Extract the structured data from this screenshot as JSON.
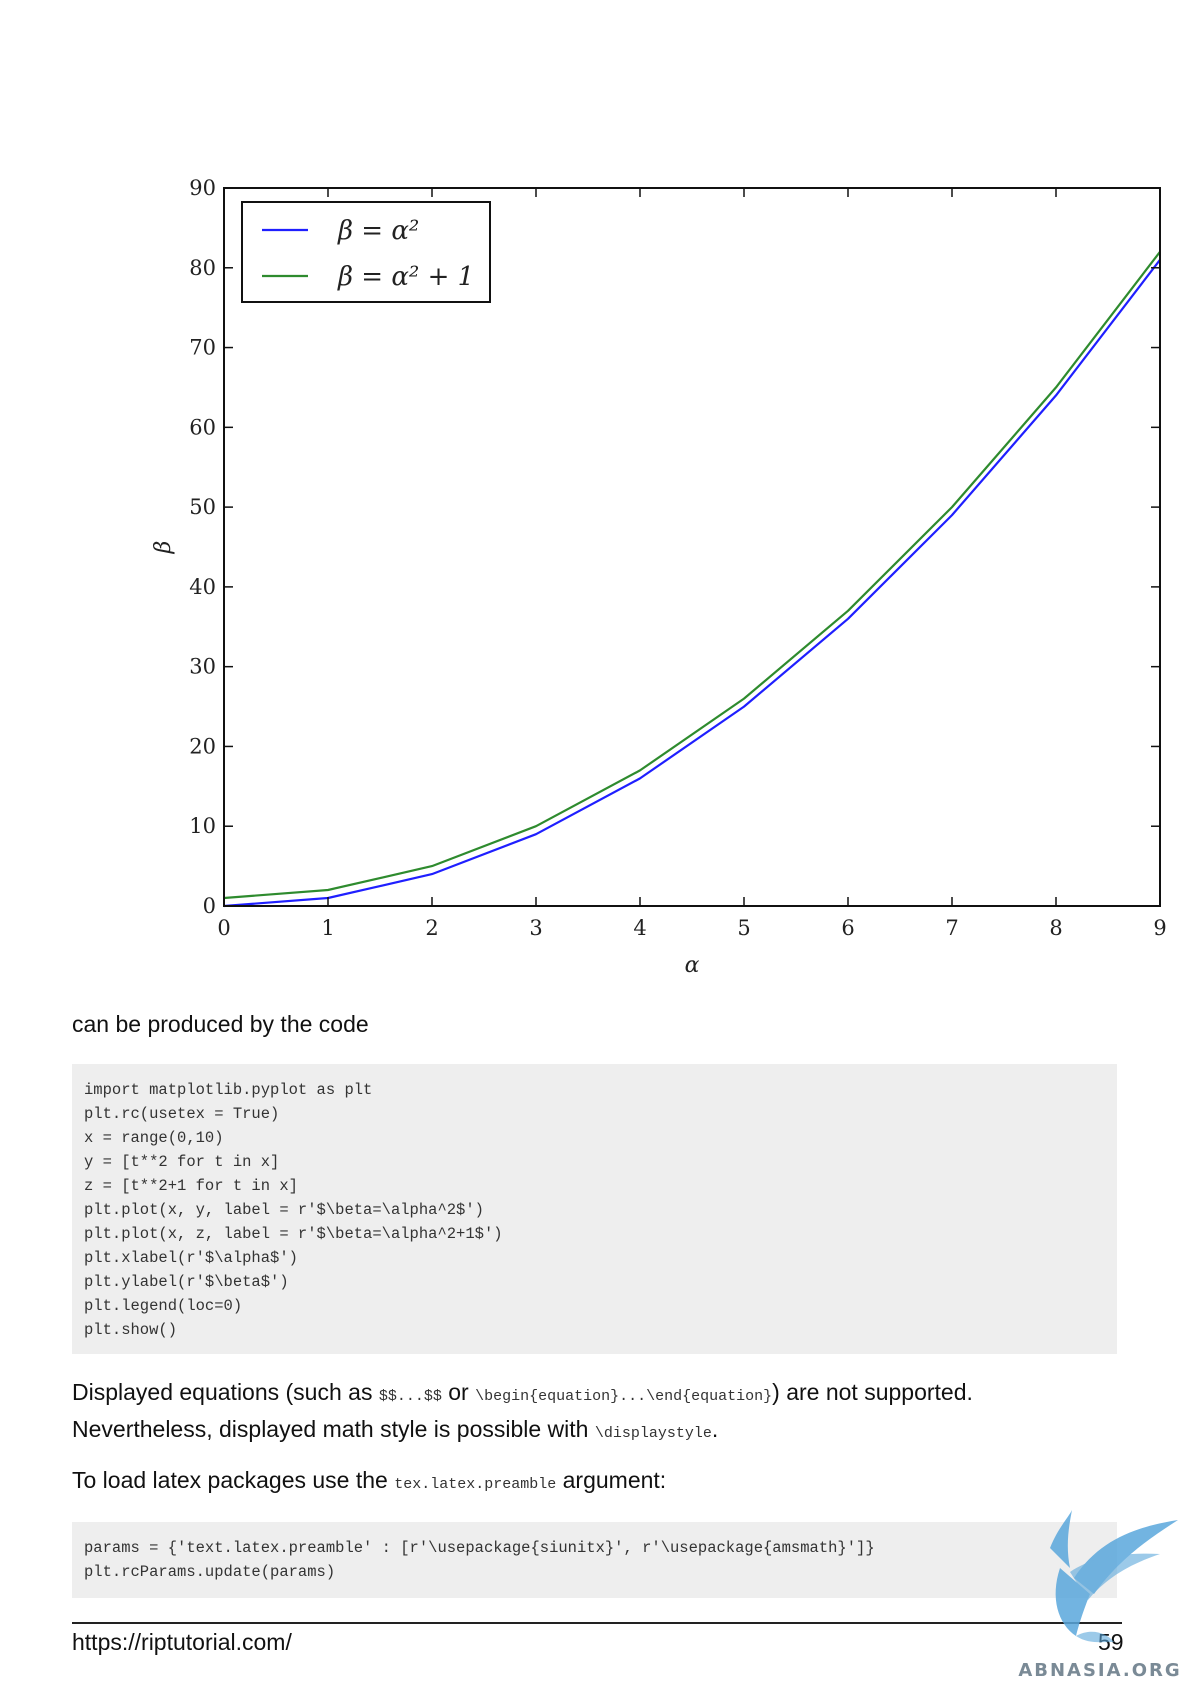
{
  "chart_data": {
    "type": "line",
    "title": "",
    "xlabel": "α",
    "ylabel": "β",
    "xlim": [
      0,
      9
    ],
    "ylim": [
      0,
      90
    ],
    "xticks": [
      "0",
      "1",
      "2",
      "3",
      "4",
      "5",
      "6",
      "7",
      "8",
      "9"
    ],
    "yticks": [
      "0",
      "10",
      "20",
      "30",
      "40",
      "50",
      "60",
      "70",
      "80",
      "90"
    ],
    "grid": false,
    "legend_position": "top-left",
    "x": [
      0,
      1,
      2,
      3,
      4,
      5,
      6,
      7,
      8,
      9
    ],
    "series": [
      {
        "name": "β = α²",
        "color": "#1f1fff",
        "values": [
          0,
          1,
          4,
          9,
          16,
          25,
          36,
          49,
          64,
          81
        ]
      },
      {
        "name": "β = α² + 1",
        "color": "#2e8b2e",
        "values": [
          1,
          2,
          5,
          10,
          17,
          26,
          37,
          50,
          65,
          82
        ]
      }
    ]
  },
  "text": {
    "intro": "can be produced by the code",
    "code_block_1": [
      "import matplotlib.pyplot as plt",
      "plt.rc(usetex = True)",
      "x = range(0,10)",
      "y = [t**2 for t in x]",
      "z = [t**2+1 for t in x]",
      "plt.plot(x, y, label = r'$\\beta=\\alpha^2$')",
      "plt.plot(x, z, label = r'$\\beta=\\alpha^2+1$')",
      "plt.xlabel(r'$\\alpha$')",
      "plt.ylabel(r'$\\beta$')",
      "plt.legend(loc=0)",
      "plt.show()"
    ],
    "para2": {
      "t1": "Displayed equations (such as ",
      "c1": "$$...$$",
      "t2": " or ",
      "c2": "\\begin{equation}...\\end{equation}",
      "t3": ") are not supported.",
      "t4": "Nevertheless, displayed math style is possible with ",
      "c3": "\\displaystyle",
      "t5": "."
    },
    "para3": {
      "t1": "To load latex packages use the ",
      "c1": "tex.latex.preamble",
      "t2": " argument:"
    },
    "code_block_2": [
      "params = {'text.latex.preamble' : [r'\\usepackage{siunitx}', r'\\usepackage{amsmath}']}",
      "plt.rcParams.update(params)"
    ]
  },
  "footer": {
    "link": "https://riptutorial.com/",
    "page_number": "59"
  },
  "watermark": {
    "text": "ABNASIA.ORG"
  }
}
